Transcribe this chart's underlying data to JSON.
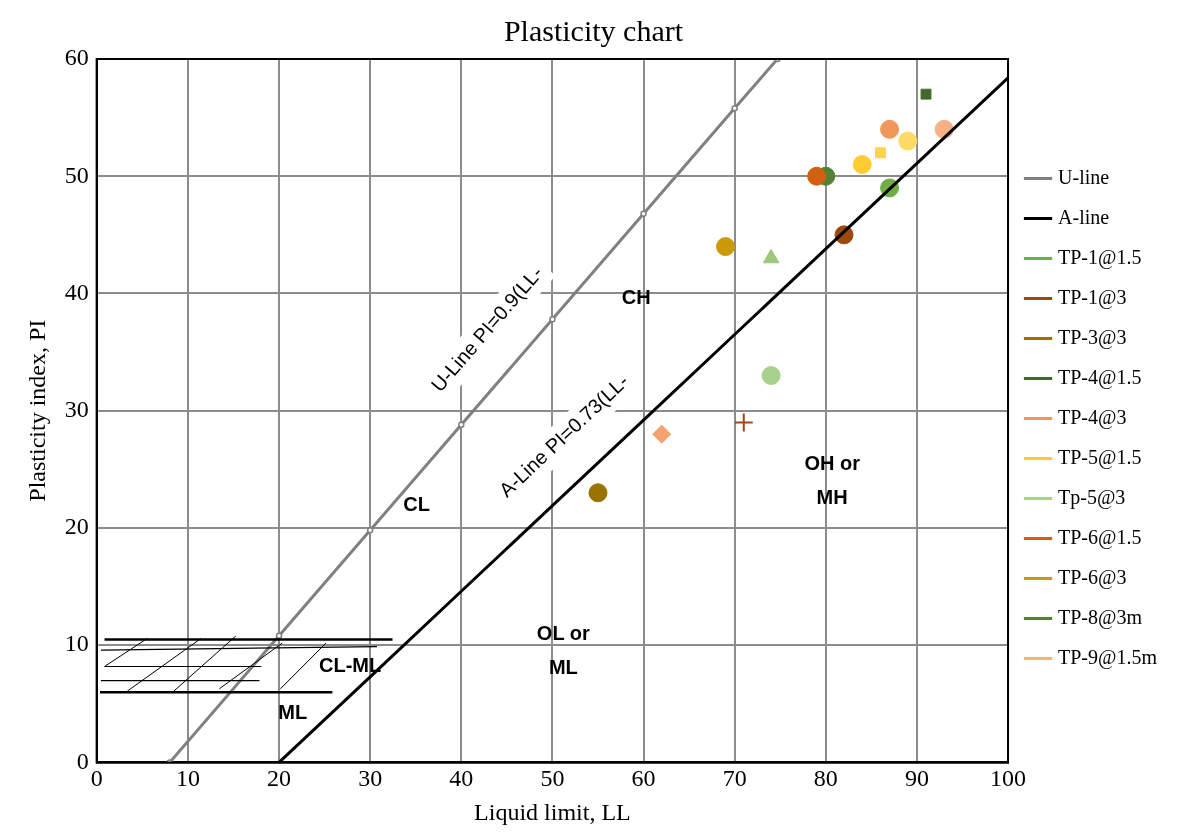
{
  "chart_data": {
    "type": "scatter",
    "title": "Plasticity chart",
    "xlabel": "Liquid limit, LL",
    "ylabel": "Plasticity index, PI",
    "xlim": [
      0,
      100
    ],
    "ylim": [
      0,
      60
    ],
    "xticks": [
      0,
      10,
      20,
      30,
      40,
      50,
      60,
      70,
      80,
      90,
      100
    ],
    "yticks": [
      0,
      10,
      20,
      30,
      40,
      50,
      60
    ],
    "grid": true,
    "legend": "right",
    "series": [
      {
        "name": "U-line",
        "type": "line",
        "color": "#808080",
        "marker": "circle",
        "x": [
          8,
          20,
          30,
          40,
          50,
          60,
          70,
          74.7
        ],
        "values": [
          0,
          10.8,
          19.8,
          28.8,
          37.8,
          46.8,
          55.8,
          60
        ]
      },
      {
        "name": "A-line",
        "type": "line",
        "color": "#000000",
        "marker": "none",
        "x": [
          20,
          30,
          40,
          50,
          60,
          70,
          80,
          90,
          100
        ],
        "values": [
          0,
          7.3,
          14.6,
          21.9,
          29.2,
          36.5,
          43.8,
          51.1,
          58.4
        ]
      },
      {
        "name": "TP-1@1.5",
        "color": "#70ad47",
        "marker": "circle",
        "x": [
          87
        ],
        "values": [
          49
        ]
      },
      {
        "name": "TP-1@3",
        "color": "#9e480e",
        "marker": "circle",
        "x": [
          82
        ],
        "values": [
          45
        ]
      },
      {
        "name": "TP-3@3",
        "color": "#997300",
        "marker": "circle",
        "x": [
          55
        ],
        "values": [
          23
        ]
      },
      {
        "name": "TP-4@1.5",
        "color": "#43682b",
        "marker": "square",
        "x": [
          91
        ],
        "values": [
          57
        ]
      },
      {
        "name": "TP-4@3",
        "color": "#f1975a",
        "marker": "circle",
        "x": [
          87
        ],
        "values": [
          54
        ]
      },
      {
        "name": "TP-5@1.5",
        "color": "#ffcd33",
        "marker": "circle",
        "x": [
          84
        ],
        "values": [
          51
        ]
      },
      {
        "name": "Tp-5@3",
        "color": "#a9d18e",
        "marker": "circle",
        "x": [
          74
        ],
        "values": [
          33
        ]
      },
      {
        "name": "TP-6@1.5",
        "color": "#d26012",
        "marker": "circle",
        "x": [
          79
        ],
        "values": [
          50
        ]
      },
      {
        "name": "TP-6@3",
        "color": "#cc9a06",
        "marker": "circle",
        "x": [
          69
        ],
        "values": [
          44
        ]
      },
      {
        "name": "TP-8@3m",
        "color": "#548235",
        "marker": "circle",
        "x": [
          80
        ],
        "values": [
          50
        ]
      },
      {
        "name": "TP-9@1.5m",
        "color": "#f4b183",
        "marker": "circle",
        "x": [
          93
        ],
        "values": [
          54
        ]
      },
      {
        "color": "#ffd34e",
        "marker": "square",
        "x": [
          86
        ],
        "values": [
          52
        ]
      },
      {
        "color": "#ffda66",
        "marker": "circle",
        "x": [
          89
        ],
        "values": [
          53
        ]
      },
      {
        "color": "#9dc97c",
        "marker": "triangle",
        "x": [
          74
        ],
        "values": [
          43
        ]
      },
      {
        "color": "#9e480e",
        "marker": "cross",
        "x": [
          71
        ],
        "values": [
          29
        ]
      },
      {
        "color": "#f4a36f",
        "marker": "diamond",
        "x": [
          62
        ],
        "values": [
          28
        ]
      }
    ],
    "annotations": [
      {
        "text": "U-Line PI=0.9(LL-",
        "x": 46.4,
        "y": 34.56
      },
      {
        "text": "A-Line PI=0.73(LL-",
        "x": 54.5,
        "y": 25.185
      },
      "CH",
      "CL",
      "OH or MH",
      "OL or ML",
      "CL-ML",
      "ML"
    ]
  }
}
